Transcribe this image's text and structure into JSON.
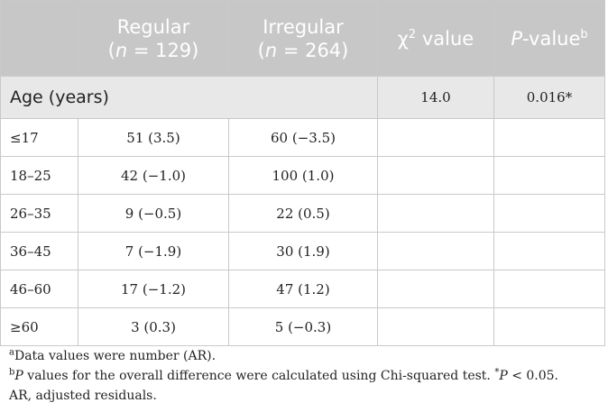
{
  "table": {
    "headers": {
      "col1": "",
      "regular_label": "Regular",
      "regular_n": "(n = 129)",
      "irregular_label": "Irregular",
      "irregular_n": "(n = 264)",
      "chi_symbol": "χ",
      "chi_exp": "2",
      "chi_rest": " value",
      "p_italic": "P",
      "p_rest": "-value",
      "p_sup": "b"
    },
    "section": {
      "label": "Age (years)",
      "chi_value": "14.0",
      "p_value": "0.016*"
    },
    "rows": [
      {
        "label": "≤17",
        "regular": "51 (3.5)",
        "irregular": "60 (−3.5)"
      },
      {
        "label": "18–25",
        "regular": "42 (−1.0)",
        "irregular": "100 (1.0)"
      },
      {
        "label": "26–35",
        "regular": "9 (−0.5)",
        "irregular": "22 (0.5)"
      },
      {
        "label": "36–45",
        "regular": "7 (−1.9)",
        "irregular": "30 (1.9)"
      },
      {
        "label": "46–60",
        "regular": "17 (−1.2)",
        "irregular": "47 (1.2)"
      },
      {
        "label": "≥60",
        "regular": "3 (0.3)",
        "irregular": "5 (−0.3)"
      }
    ]
  },
  "notes": {
    "a_mark": "a",
    "a_text": "Data values were number (AR).",
    "b_mark": "b",
    "b_p": "P",
    "b_text": " values for the overall difference were calculated using Chi-squared test. ",
    "b_star": "*",
    "b_p2": "P",
    "b_text2": " < 0.05.",
    "b_line2": "AR, adjusted residuals."
  }
}
